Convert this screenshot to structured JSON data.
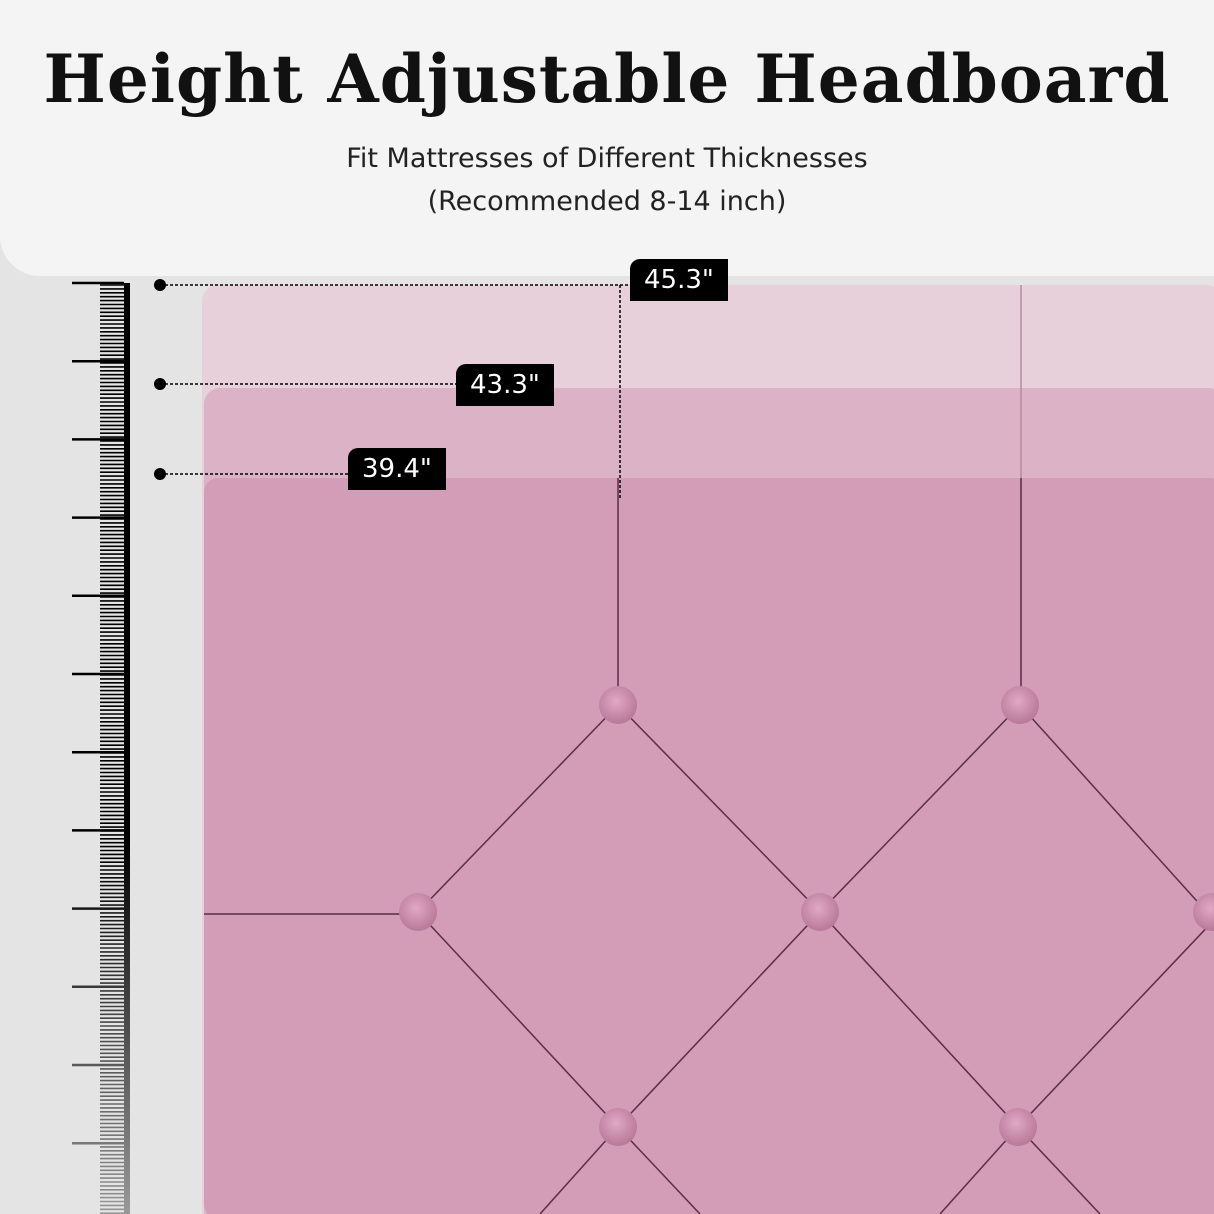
{
  "title": "Height Adjustable Headboard",
  "subtitle_line1": "Fit Mattresses of Different Thicknesses",
  "subtitle_line2": "(Recommended 8-14 inch)",
  "heights": {
    "high": "45.3\"",
    "mid": "43.3\"",
    "low": "39.4\""
  },
  "colors": {
    "fabric": "#d39cb7",
    "fabric_mid": "#dcb3c6",
    "fabric_top": "#e7d0da",
    "background": "#e4e4e4"
  }
}
